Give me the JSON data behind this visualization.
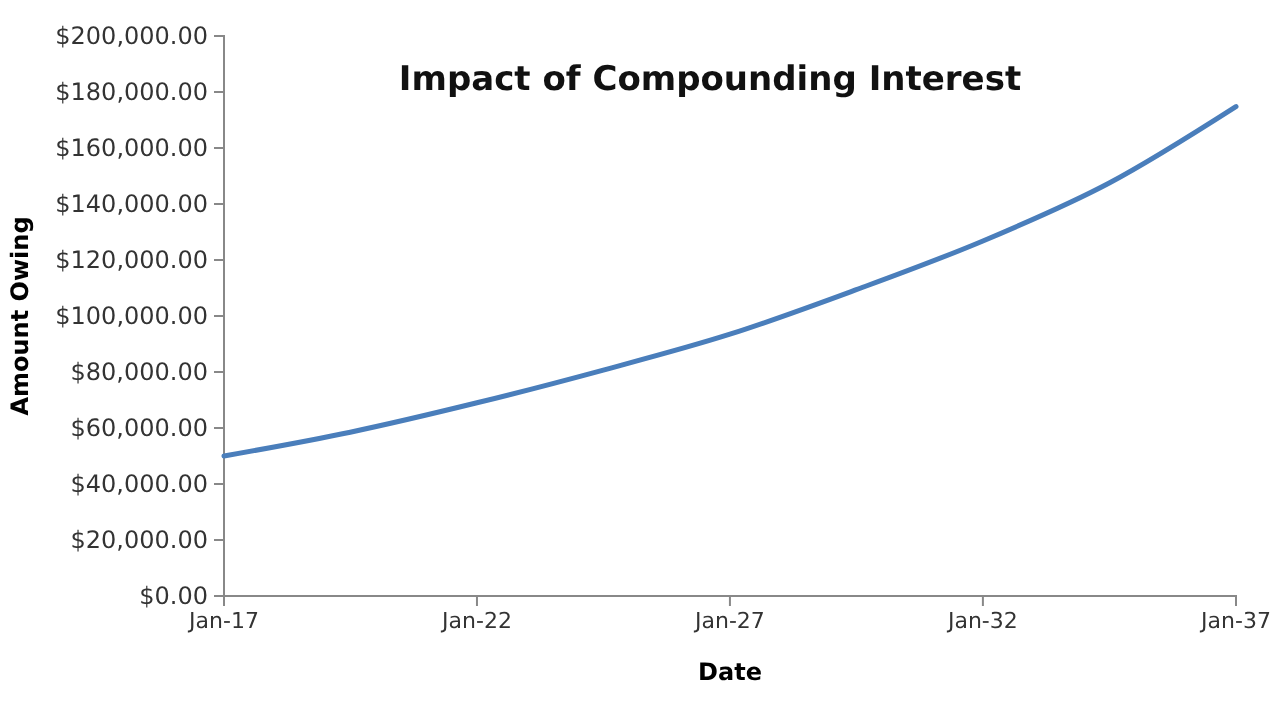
{
  "chart_data": {
    "type": "line",
    "title": "Impact of Compounding Interest",
    "xlabel": "Date",
    "ylabel": "Amount Owing",
    "x": [
      "2017-01",
      "2019-07",
      "2022-01",
      "2024-07",
      "2027-01",
      "2029-07",
      "2032-01",
      "2034-07",
      "2037-01"
    ],
    "series": [
      {
        "color": "#4a7ebb",
        "values": [
          50000,
          58500,
          69000,
          80700,
          93500,
          109400,
          126800,
          147500,
          174800
        ]
      }
    ],
    "xlim": [
      "2017-01",
      "2037-01"
    ],
    "xticks": [
      {
        "value": "2017-01",
        "label": "Jan-17"
      },
      {
        "value": "2022-01",
        "label": "Jan-22"
      },
      {
        "value": "2027-01",
        "label": "Jan-27"
      },
      {
        "value": "2032-01",
        "label": "Jan-32"
      },
      {
        "value": "2037-01",
        "label": "Jan-37"
      }
    ],
    "ylim": [
      0,
      200000
    ],
    "yticks": [
      {
        "value": 0,
        "label": "$0.00"
      },
      {
        "value": 20000,
        "label": "$20,000.00"
      },
      {
        "value": 40000,
        "label": "$40,000.00"
      },
      {
        "value": 60000,
        "label": "$60,000.00"
      },
      {
        "value": 80000,
        "label": "$80,000.00"
      },
      {
        "value": 100000,
        "label": "$100,000.00"
      },
      {
        "value": 120000,
        "label": "$120,000.00"
      },
      {
        "value": 140000,
        "label": "$140,000.00"
      },
      {
        "value": 160000,
        "label": "$160,000.00"
      },
      {
        "value": 180000,
        "label": "$180,000.00"
      },
      {
        "value": 200000,
        "label": "$200,000.00"
      }
    ],
    "grid": false,
    "marker": "none",
    "line_style": "solid"
  }
}
